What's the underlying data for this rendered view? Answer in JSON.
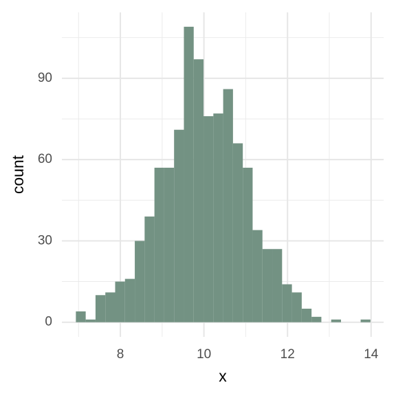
{
  "chart_data": {
    "type": "histogram",
    "x_label": "x",
    "y_label": "count",
    "bins": [
      6.935,
      7.17,
      7.405,
      7.64,
      7.875,
      8.11,
      8.345,
      8.58,
      8.815,
      9.05,
      9.285,
      9.52,
      9.755,
      9.99,
      10.225,
      10.46,
      10.695,
      10.93,
      11.165,
      11.4,
      11.635,
      11.87,
      12.105,
      12.34,
      12.575,
      12.81,
      13.045,
      13.28,
      13.515,
      13.75,
      13.985
    ],
    "values": [
      4,
      1,
      10,
      11,
      15,
      16,
      30,
      39,
      57,
      57,
      71,
      109,
      97,
      76,
      77,
      86,
      66,
      57,
      34,
      27,
      27,
      14,
      11,
      5,
      2,
      0,
      1,
      0,
      0,
      1
    ],
    "color": "#739283",
    "xlim": [
      6.6,
      14.3
    ],
    "xticks": [
      8,
      10,
      12,
      14
    ],
    "x_minor_ticks": [
      7,
      9,
      11,
      13
    ],
    "ylim": [
      -5.4,
      114.3
    ],
    "yticks": [
      0,
      30,
      60,
      90
    ],
    "y_minor_ticks": [
      15,
      45,
      75,
      105
    ],
    "grid": true
  }
}
